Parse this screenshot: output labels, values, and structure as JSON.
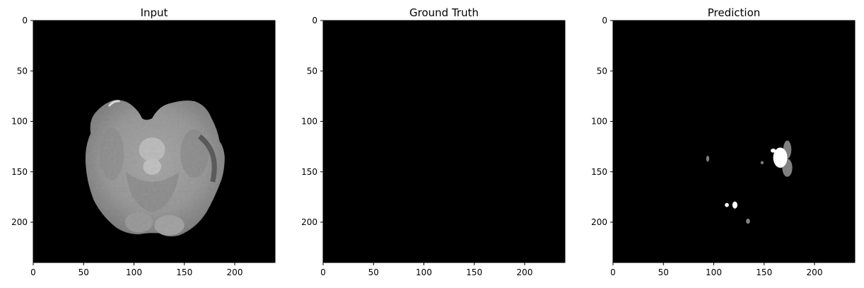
{
  "chart_data": [
    {
      "type": "heatmap",
      "title": "Input",
      "x_ticks": [
        "0",
        "50",
        "100",
        "150",
        "200"
      ],
      "y_ticks": [
        "0",
        "50",
        "100",
        "150",
        "200"
      ],
      "xlim": [
        0,
        240
      ],
      "ylim": [
        240,
        0
      ],
      "colormap": "gray",
      "content": "grayscale axial brain MRI slice"
    },
    {
      "type": "heatmap",
      "title": "Ground Truth",
      "x_ticks": [
        "0",
        "50",
        "100",
        "150",
        "200"
      ],
      "y_ticks": [
        "0",
        "50",
        "100",
        "150",
        "200"
      ],
      "xlim": [
        0,
        240
      ],
      "ylim": [
        240,
        0
      ],
      "colormap": "gray",
      "content": "all zero"
    },
    {
      "type": "heatmap",
      "title": "Prediction",
      "x_ticks": [
        "0",
        "50",
        "100",
        "150",
        "200"
      ],
      "y_ticks": [
        "0",
        "50",
        "100",
        "150",
        "200"
      ],
      "xlim": [
        0,
        240
      ],
      "ylim": [
        240,
        0
      ],
      "colormap": "gray",
      "regions": [
        {
          "shape": "ellipse",
          "cx": 173,
          "cy": 128,
          "rx": 4,
          "ry": 9,
          "level": 0.5
        },
        {
          "shape": "ellipse",
          "cx": 173,
          "cy": 146,
          "rx": 5,
          "ry": 9,
          "level": 0.5
        },
        {
          "shape": "ellipse",
          "cx": 166,
          "cy": 136,
          "rx": 7,
          "ry": 10,
          "level": 1.0
        },
        {
          "shape": "ellipse",
          "cx": 159,
          "cy": 129,
          "rx": 2.5,
          "ry": 2,
          "level": 1.0
        },
        {
          "shape": "ellipse",
          "cx": 148,
          "cy": 141,
          "rx": 1.5,
          "ry": 1.5,
          "level": 0.5
        },
        {
          "shape": "ellipse",
          "cx": 94,
          "cy": 137,
          "rx": 1.5,
          "ry": 3,
          "level": 0.5
        },
        {
          "shape": "ellipse",
          "cx": 113,
          "cy": 183,
          "rx": 2,
          "ry": 2,
          "level": 1.0
        },
        {
          "shape": "ellipse",
          "cx": 121,
          "cy": 183,
          "rx": 2.5,
          "ry": 3.5,
          "level": 1.0
        },
        {
          "shape": "ellipse",
          "cx": 134,
          "cy": 199,
          "rx": 2,
          "ry": 2.5,
          "level": 0.5
        }
      ]
    }
  ]
}
